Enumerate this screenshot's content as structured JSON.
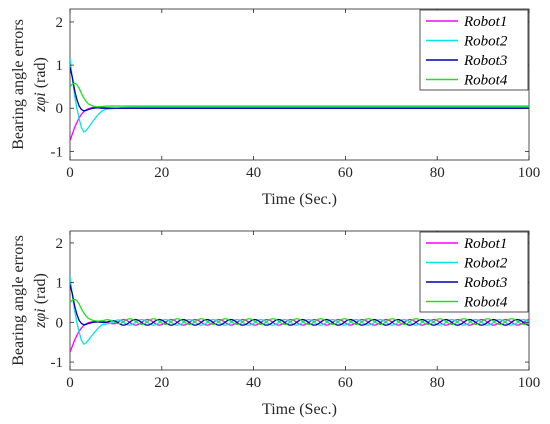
{
  "chart_data": [
    {
      "type": "line",
      "xlabel": "Time (Sec.)",
      "ylabel": "Bearing angle errors",
      "ylabel_var": "zφi",
      "ylabel_unit": "(rad)",
      "xlim": [
        0,
        100
      ],
      "ylim": [
        -1.2,
        2.3
      ],
      "xticks": [
        "0",
        "20",
        "40",
        "60",
        "80",
        "100"
      ],
      "yticks": [
        "-1",
        "0",
        "1",
        "2"
      ],
      "legend_position": "top-right",
      "grid": false,
      "x": [
        0,
        0.5,
        1,
        1.5,
        2,
        2.5,
        3,
        3.5,
        4,
        5,
        6,
        7,
        8,
        10,
        12,
        15,
        20,
        30,
        40,
        50,
        60,
        70,
        80,
        90,
        100
      ],
      "series": [
        {
          "name": "Robot1",
          "color": "#ff00ff",
          "values": [
            -0.75,
            -0.6,
            -0.45,
            -0.33,
            -0.22,
            -0.14,
            -0.08,
            -0.04,
            -0.01,
            0.02,
            0.03,
            0.02,
            0.01,
            0.0,
            0.0,
            0.0,
            0.0,
            0.0,
            0.0,
            0.0,
            0.0,
            0.0,
            0.0,
            0.0,
            0.0
          ]
        },
        {
          "name": "Robot2",
          "color": "#00e5e5",
          "values": [
            1.15,
            0.7,
            0.3,
            0.0,
            -0.25,
            -0.45,
            -0.55,
            -0.52,
            -0.45,
            -0.3,
            -0.16,
            -0.06,
            -0.02,
            0.0,
            0.02,
            0.03,
            0.03,
            0.03,
            0.03,
            0.03,
            0.03,
            0.03,
            0.03,
            0.03,
            0.03
          ]
        },
        {
          "name": "Robot3",
          "color": "#0000b0",
          "values": [
            0.95,
            0.72,
            0.42,
            0.2,
            0.05,
            -0.03,
            -0.06,
            -0.05,
            -0.03,
            0.0,
            0.01,
            0.0,
            0.0,
            0.0,
            0.0,
            0.0,
            0.0,
            0.0,
            0.0,
            0.0,
            0.0,
            0.0,
            0.0,
            0.0,
            0.0
          ]
        },
        {
          "name": "Robot4",
          "color": "#22dd22",
          "values": [
            0.5,
            0.56,
            0.58,
            0.55,
            0.46,
            0.34,
            0.24,
            0.16,
            0.1,
            0.05,
            0.03,
            0.04,
            0.05,
            0.05,
            0.05,
            0.05,
            0.05,
            0.05,
            0.05,
            0.05,
            0.05,
            0.05,
            0.05,
            0.05,
            0.05
          ]
        }
      ]
    },
    {
      "type": "line",
      "xlabel": "Time (Sec.)",
      "ylabel": "Bearing angle errors",
      "ylabel_var": "zφi",
      "ylabel_unit": "(rad)",
      "xlim": [
        0,
        100
      ],
      "ylim": [
        -1.2,
        2.3
      ],
      "xticks": [
        "0",
        "20",
        "40",
        "60",
        "80",
        "100"
      ],
      "yticks": [
        "-1",
        "0",
        "1",
        "2"
      ],
      "legend_position": "top-right",
      "grid": false,
      "x": [
        0,
        0.5,
        1,
        1.5,
        2,
        2.5,
        3,
        3.5,
        4,
        5,
        6,
        7,
        8,
        10,
        12,
        15,
        20,
        30,
        40,
        50,
        60,
        70,
        80,
        90,
        100
      ],
      "steady_oscillation": {
        "start": 10,
        "amplitude": 0.07,
        "period": 5.2
      },
      "series": [
        {
          "name": "Robot1",
          "color": "#ff00ff",
          "values": [
            -0.75,
            -0.6,
            -0.45,
            -0.33,
            -0.22,
            -0.14,
            -0.08,
            -0.04,
            -0.01,
            0.02,
            0.03,
            0.02,
            0.01,
            0.0,
            0.0,
            0.0,
            0.0,
            0.0,
            0.0,
            0.0,
            0.0,
            0.0,
            0.0,
            0.0,
            0.0
          ],
          "phase": 0.0
        },
        {
          "name": "Robot2",
          "color": "#00e5e5",
          "values": [
            1.15,
            0.7,
            0.3,
            0.0,
            -0.25,
            -0.45,
            -0.55,
            -0.52,
            -0.45,
            -0.3,
            -0.16,
            -0.06,
            -0.02,
            0.0,
            0.0,
            0.0,
            0.0,
            0.0,
            0.0,
            0.0,
            0.0,
            0.0,
            0.0,
            0.0,
            0.0
          ],
          "phase": 1.6
        },
        {
          "name": "Robot3",
          "color": "#0000b0",
          "values": [
            0.95,
            0.72,
            0.42,
            0.2,
            0.05,
            -0.03,
            -0.06,
            -0.05,
            -0.03,
            0.0,
            0.01,
            0.0,
            0.0,
            0.0,
            0.0,
            0.0,
            0.0,
            0.0,
            0.0,
            0.0,
            0.0,
            0.0,
            0.0,
            0.0,
            0.0
          ],
          "phase": 3.2
        },
        {
          "name": "Robot4",
          "color": "#22dd22",
          "values": [
            0.5,
            0.56,
            0.58,
            0.55,
            0.46,
            0.34,
            0.24,
            0.16,
            0.1,
            0.05,
            0.03,
            0.04,
            0.05,
            0.03,
            0.02,
            0.02,
            0.02,
            0.02,
            0.02,
            0.02,
            0.02,
            0.02,
            0.02,
            0.02,
            0.02
          ],
          "phase": 4.7
        }
      ]
    }
  ]
}
